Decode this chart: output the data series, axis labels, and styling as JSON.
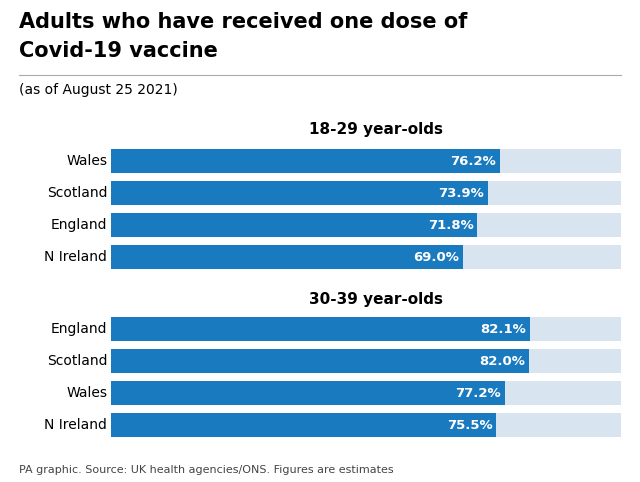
{
  "title_line1": "Adults who have received one dose of",
  "title_line2": "Covid-19 vaccine",
  "subtitle": "(as of August 25 2021)",
  "footnote": "PA graphic. Source: UK health agencies/ONS. Figures are estimates",
  "group1_label": "18-29 year-olds",
  "group1_countries": [
    "Wales",
    "Scotland",
    "England",
    "N Ireland"
  ],
  "group1_values": [
    76.2,
    73.9,
    71.8,
    69.0
  ],
  "group2_label": "30-39 year-olds",
  "group2_countries": [
    "England",
    "Scotland",
    "Wales",
    "N Ireland"
  ],
  "group2_values": [
    82.1,
    82.0,
    77.2,
    75.5
  ],
  "bar_color": "#1a7abf",
  "bg_bar_color": "#d8e4f0",
  "background_color": "#ffffff",
  "label_color": "#ffffff",
  "text_color": "#000000",
  "footnote_color": "#444444",
  "max_value": 100,
  "bar_height": 0.6,
  "title_fontsize": 15,
  "subtitle_fontsize": 10,
  "label_fontsize": 10,
  "value_fontsize": 9.5,
  "header_fontsize": 11,
  "footnote_fontsize": 8
}
